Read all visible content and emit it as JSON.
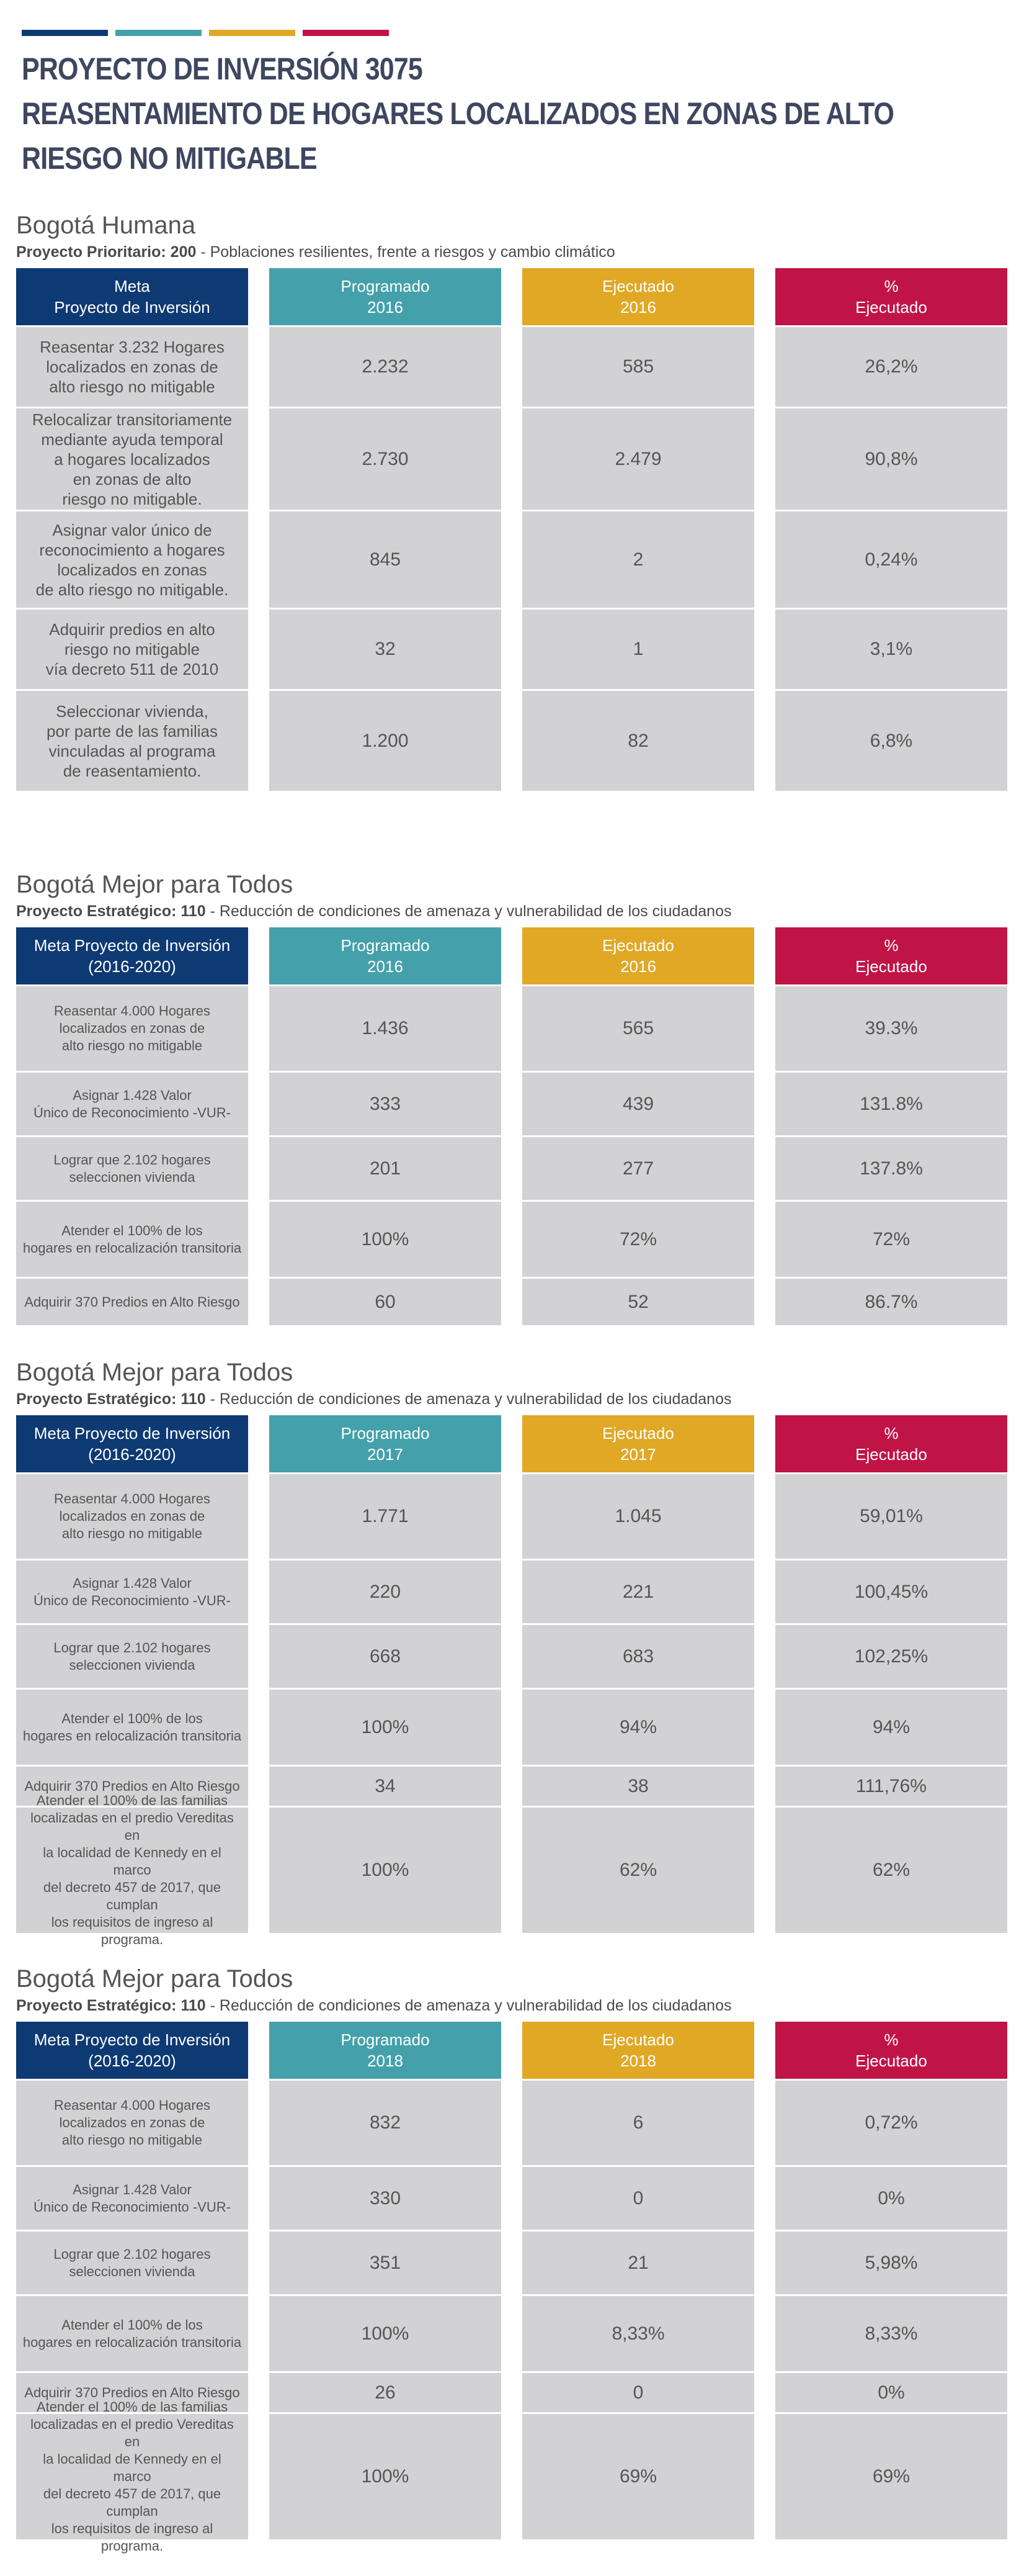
{
  "colors": {
    "navy": "#0e3a74",
    "teal": "#44a1ab",
    "gold": "#e0a825",
    "crimson": "#c01447",
    "title": "#3e4660",
    "cell": "#d2d2d4"
  },
  "title": {
    "line1": "PROYECTO DE INVERSIÓN 3075",
    "line2": "REASENTAMIENTO DE HOGARES LOCALIZADOS EN ZONAS DE ALTO",
    "line3": "RIESGO NO MITIGABLE"
  },
  "sections": [
    {
      "heading": "Bogotá Humana",
      "sub_label": "Proyecto Prioritario: 200",
      "sub_text": " - Poblaciones resilientes, frente a riesgos y cambio climático",
      "headers": [
        "Meta\nProyecto de Inversión",
        "Programado\n2016",
        "Ejecutado\n2016",
        "%\nEjecutado"
      ],
      "rows": [
        {
          "desc": "Reasentar 3.232 Hogares\nlocalizados en zonas de\nalto riesgo no mitigable",
          "programado": "2.232",
          "ejecutado": "585",
          "pct": "26,2%"
        },
        {
          "desc": "Relocalizar transitoriamente\nmediante ayuda temporal\na hogares localizados\nen zonas de alto\nriesgo no mitigable.",
          "programado": "2.730",
          "ejecutado": "2.479",
          "pct": "90,8%"
        },
        {
          "desc": "Asignar valor único de\nreconocimiento a  hogares\nlocalizados en zonas\nde alto riesgo no mitigable.",
          "programado": "845",
          "ejecutado": "2",
          "pct": "0,24%"
        },
        {
          "desc": "Adquirir predios en alto\nriesgo no mitigable\nvía decreto 511 de 2010",
          "programado": "32",
          "ejecutado": "1",
          "pct": "3,1%"
        },
        {
          "desc": "Seleccionar vivienda,\npor parte de las familias\nvinculadas al programa\nde reasentamiento.",
          "programado": "1.200",
          "ejecutado": "82",
          "pct": "6,8%"
        }
      ]
    },
    {
      "heading": "Bogotá Mejor para Todos",
      "sub_label": "Proyecto Estratégico: 110",
      "sub_text": " - Reducción de condiciones de amenaza y vulnerabilidad de los ciudadanos",
      "headers": [
        "Meta Proyecto de Inversión\n(2016-2020)",
        "Programado\n2016",
        "Ejecutado\n2016",
        "%\nEjecutado"
      ],
      "rows": [
        {
          "desc": "Reasentar 4.000 Hogares\nlocalizados en zonas de\nalto riesgo no mitigable",
          "programado": "1.436",
          "ejecutado": "565",
          "pct": "39.3%"
        },
        {
          "desc": "Asignar 1.428 Valor\nÚnico de Reconocimiento -VUR-",
          "programado": "333",
          "ejecutado": "439",
          "pct": "131.8%"
        },
        {
          "desc": "Lograr que 2.102 hogares\nseleccionen vivienda",
          "programado": "201",
          "ejecutado": "277",
          "pct": "137.8%"
        },
        {
          "desc": "Atender el 100% de los\nhogares en relocalización transitoria",
          "programado": "100%",
          "ejecutado": "72%",
          "pct": "72%"
        },
        {
          "desc": "Adquirir 370 Predios en Alto Riesgo",
          "programado": "60",
          "ejecutado": "52",
          "pct": "86.7%"
        }
      ]
    },
    {
      "heading": "Bogotá Mejor para Todos",
      "sub_label": "Proyecto Estratégico: 110",
      "sub_text": " - Reducción de condiciones de amenaza y vulnerabilidad de los ciudadanos",
      "headers": [
        "Meta Proyecto de Inversión\n(2016-2020)",
        "Programado\n2017",
        "Ejecutado\n2017",
        "%\nEjecutado"
      ],
      "rows": [
        {
          "desc": "Reasentar 4.000 Hogares\nlocalizados en zonas de\nalto riesgo no mitigable",
          "programado": "1.771",
          "ejecutado": "1.045",
          "pct": "59,01%"
        },
        {
          "desc": "Asignar 1.428 Valor\nÚnico de Reconocimiento -VUR-",
          "programado": "220",
          "ejecutado": "221",
          "pct": "100,45%"
        },
        {
          "desc": "Lograr que 2.102 hogares\nseleccionen vivienda",
          "programado": "668",
          "ejecutado": "683",
          "pct": "102,25%"
        },
        {
          "desc": "Atender el 100% de los\nhogares en relocalización transitoria",
          "programado": "100%",
          "ejecutado": "94%",
          "pct": "94%"
        },
        {
          "desc": "Adquirir 370 Predios en Alto Riesgo",
          "programado": "34",
          "ejecutado": "38",
          "pct": "111,76%"
        },
        {
          "desc": "Atender el 100% de las familias\nlocalizadas en el predio Vereditas en\nla localidad de Kennedy en el marco\ndel decreto 457 de 2017, que cumplan\nlos requisitos de ingreso al\nprograma.",
          "programado": "100%",
          "ejecutado": "62%",
          "pct": "62%"
        }
      ]
    },
    {
      "heading": "Bogotá Mejor para Todos",
      "sub_label": "Proyecto Estratégico: 110",
      "sub_text": " - Reducción de condiciones de amenaza y vulnerabilidad de los ciudadanos",
      "headers": [
        "Meta Proyecto de Inversión\n(2016-2020)",
        "Programado\n2018",
        "Ejecutado\n2018",
        "%\nEjecutado"
      ],
      "rows": [
        {
          "desc": "Reasentar 4.000 Hogares\nlocalizados en zonas de\nalto riesgo no mitigable",
          "programado": "832",
          "ejecutado": "6",
          "pct": "0,72%"
        },
        {
          "desc": "Asignar 1.428 Valor\nÚnico de Reconocimiento -VUR-",
          "programado": "330",
          "ejecutado": "0",
          "pct": "0%"
        },
        {
          "desc": "Lograr que 2.102 hogares\nseleccionen vivienda",
          "programado": "351",
          "ejecutado": "21",
          "pct": "5,98%"
        },
        {
          "desc": "Atender el 100% de los\nhogares en relocalización transitoria",
          "programado": "100%",
          "ejecutado": "8,33%",
          "pct": "8,33%"
        },
        {
          "desc": "Adquirir 370 Predios en Alto Riesgo",
          "programado": "26",
          "ejecutado": "0",
          "pct": "0%"
        },
        {
          "desc": "Atender el 100% de las familias\nlocalizadas en el predio Vereditas en\nla localidad de Kennedy en el marco\ndel decreto 457 de 2017, que cumplan\nlos requisitos de ingreso al\nprograma.",
          "programado": "100%",
          "ejecutado": "69%",
          "pct": "69%"
        }
      ]
    }
  ]
}
